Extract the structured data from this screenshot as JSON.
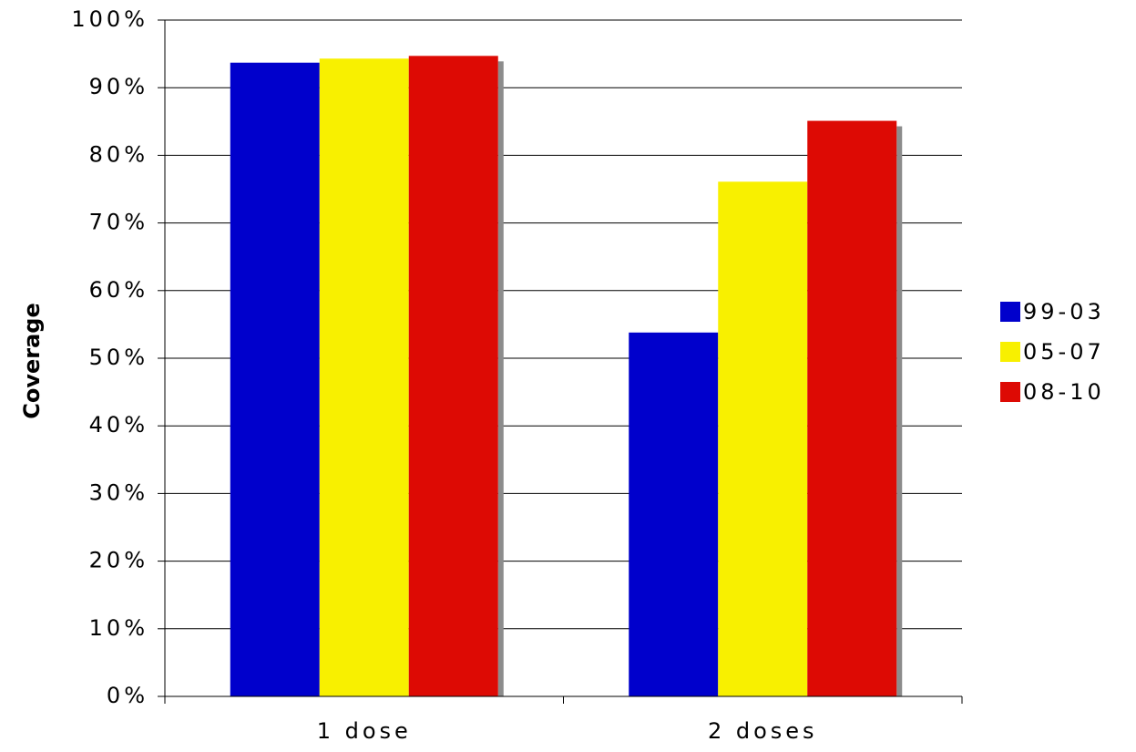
{
  "chart_data": {
    "type": "bar",
    "title": "",
    "xlabel": "",
    "ylabel": "Coverage",
    "categories": [
      "1 dose",
      "2 doses"
    ],
    "series": [
      {
        "name": "99-03",
        "color": "#0000cc",
        "values": [
          93.7,
          53.8
        ]
      },
      {
        "name": "05-07",
        "color": "#f8f000",
        "values": [
          94.3,
          76.1
        ]
      },
      {
        "name": "08-10",
        "color": "#dd0a04",
        "values": [
          94.7,
          85.1
        ]
      }
    ],
    "ylim": [
      0,
      100
    ],
    "yticks": [
      0,
      10,
      20,
      30,
      40,
      50,
      60,
      70,
      80,
      90,
      100
    ],
    "ytick_labels": [
      "0%",
      "10%",
      "20%",
      "30%",
      "40%",
      "50%",
      "60%",
      "70%",
      "80%",
      "90%",
      "100%"
    ],
    "grid": true,
    "legend_position": "right"
  }
}
